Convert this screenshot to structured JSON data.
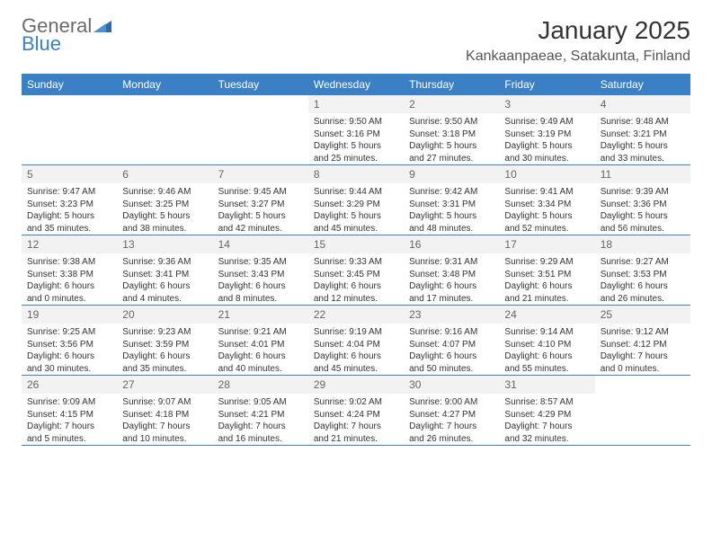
{
  "logo": {
    "text1": "General",
    "text2": "Blue"
  },
  "title": "January 2025",
  "location": "Kankaanpaeae, Satakunta, Finland",
  "colors": {
    "header_bg": "#3b7fc4",
    "header_text": "#ffffff",
    "daynum_bg": "#f2f2f2",
    "daynum_text": "#666666",
    "body_text": "#333333",
    "rule": "#3b7fc4",
    "logo_gray": "#6b6b6b",
    "logo_blue": "#3b7fc4",
    "page_bg": "#ffffff"
  },
  "typography": {
    "title_fontsize": 28,
    "location_fontsize": 16,
    "weekday_fontsize": 12,
    "daynum_fontsize": 12,
    "detail_fontsize": 10
  },
  "weekdays": [
    "Sunday",
    "Monday",
    "Tuesday",
    "Wednesday",
    "Thursday",
    "Friday",
    "Saturday"
  ],
  "days": [
    {
      "n": 1,
      "sr": "9:50 AM",
      "ss": "3:16 PM",
      "dl": "5 hours and 25 minutes."
    },
    {
      "n": 2,
      "sr": "9:50 AM",
      "ss": "3:18 PM",
      "dl": "5 hours and 27 minutes."
    },
    {
      "n": 3,
      "sr": "9:49 AM",
      "ss": "3:19 PM",
      "dl": "5 hours and 30 minutes."
    },
    {
      "n": 4,
      "sr": "9:48 AM",
      "ss": "3:21 PM",
      "dl": "5 hours and 33 minutes."
    },
    {
      "n": 5,
      "sr": "9:47 AM",
      "ss": "3:23 PM",
      "dl": "5 hours and 35 minutes."
    },
    {
      "n": 6,
      "sr": "9:46 AM",
      "ss": "3:25 PM",
      "dl": "5 hours and 38 minutes."
    },
    {
      "n": 7,
      "sr": "9:45 AM",
      "ss": "3:27 PM",
      "dl": "5 hours and 42 minutes."
    },
    {
      "n": 8,
      "sr": "9:44 AM",
      "ss": "3:29 PM",
      "dl": "5 hours and 45 minutes."
    },
    {
      "n": 9,
      "sr": "9:42 AM",
      "ss": "3:31 PM",
      "dl": "5 hours and 48 minutes."
    },
    {
      "n": 10,
      "sr": "9:41 AM",
      "ss": "3:34 PM",
      "dl": "5 hours and 52 minutes."
    },
    {
      "n": 11,
      "sr": "9:39 AM",
      "ss": "3:36 PM",
      "dl": "5 hours and 56 minutes."
    },
    {
      "n": 12,
      "sr": "9:38 AM",
      "ss": "3:38 PM",
      "dl": "6 hours and 0 minutes."
    },
    {
      "n": 13,
      "sr": "9:36 AM",
      "ss": "3:41 PM",
      "dl": "6 hours and 4 minutes."
    },
    {
      "n": 14,
      "sr": "9:35 AM",
      "ss": "3:43 PM",
      "dl": "6 hours and 8 minutes."
    },
    {
      "n": 15,
      "sr": "9:33 AM",
      "ss": "3:45 PM",
      "dl": "6 hours and 12 minutes."
    },
    {
      "n": 16,
      "sr": "9:31 AM",
      "ss": "3:48 PM",
      "dl": "6 hours and 17 minutes."
    },
    {
      "n": 17,
      "sr": "9:29 AM",
      "ss": "3:51 PM",
      "dl": "6 hours and 21 minutes."
    },
    {
      "n": 18,
      "sr": "9:27 AM",
      "ss": "3:53 PM",
      "dl": "6 hours and 26 minutes."
    },
    {
      "n": 19,
      "sr": "9:25 AM",
      "ss": "3:56 PM",
      "dl": "6 hours and 30 minutes."
    },
    {
      "n": 20,
      "sr": "9:23 AM",
      "ss": "3:59 PM",
      "dl": "6 hours and 35 minutes."
    },
    {
      "n": 21,
      "sr": "9:21 AM",
      "ss": "4:01 PM",
      "dl": "6 hours and 40 minutes."
    },
    {
      "n": 22,
      "sr": "9:19 AM",
      "ss": "4:04 PM",
      "dl": "6 hours and 45 minutes."
    },
    {
      "n": 23,
      "sr": "9:16 AM",
      "ss": "4:07 PM",
      "dl": "6 hours and 50 minutes."
    },
    {
      "n": 24,
      "sr": "9:14 AM",
      "ss": "4:10 PM",
      "dl": "6 hours and 55 minutes."
    },
    {
      "n": 25,
      "sr": "9:12 AM",
      "ss": "4:12 PM",
      "dl": "7 hours and 0 minutes."
    },
    {
      "n": 26,
      "sr": "9:09 AM",
      "ss": "4:15 PM",
      "dl": "7 hours and 5 minutes."
    },
    {
      "n": 27,
      "sr": "9:07 AM",
      "ss": "4:18 PM",
      "dl": "7 hours and 10 minutes."
    },
    {
      "n": 28,
      "sr": "9:05 AM",
      "ss": "4:21 PM",
      "dl": "7 hours and 16 minutes."
    },
    {
      "n": 29,
      "sr": "9:02 AM",
      "ss": "4:24 PM",
      "dl": "7 hours and 21 minutes."
    },
    {
      "n": 30,
      "sr": "9:00 AM",
      "ss": "4:27 PM",
      "dl": "7 hours and 26 minutes."
    },
    {
      "n": 31,
      "sr": "8:57 AM",
      "ss": "4:29 PM",
      "dl": "7 hours and 32 minutes."
    }
  ],
  "labels": {
    "sunrise": "Sunrise:",
    "sunset": "Sunset:",
    "daylight": "Daylight:"
  },
  "layout": {
    "start_weekday_index": 3,
    "columns": 7,
    "rows": 5
  }
}
